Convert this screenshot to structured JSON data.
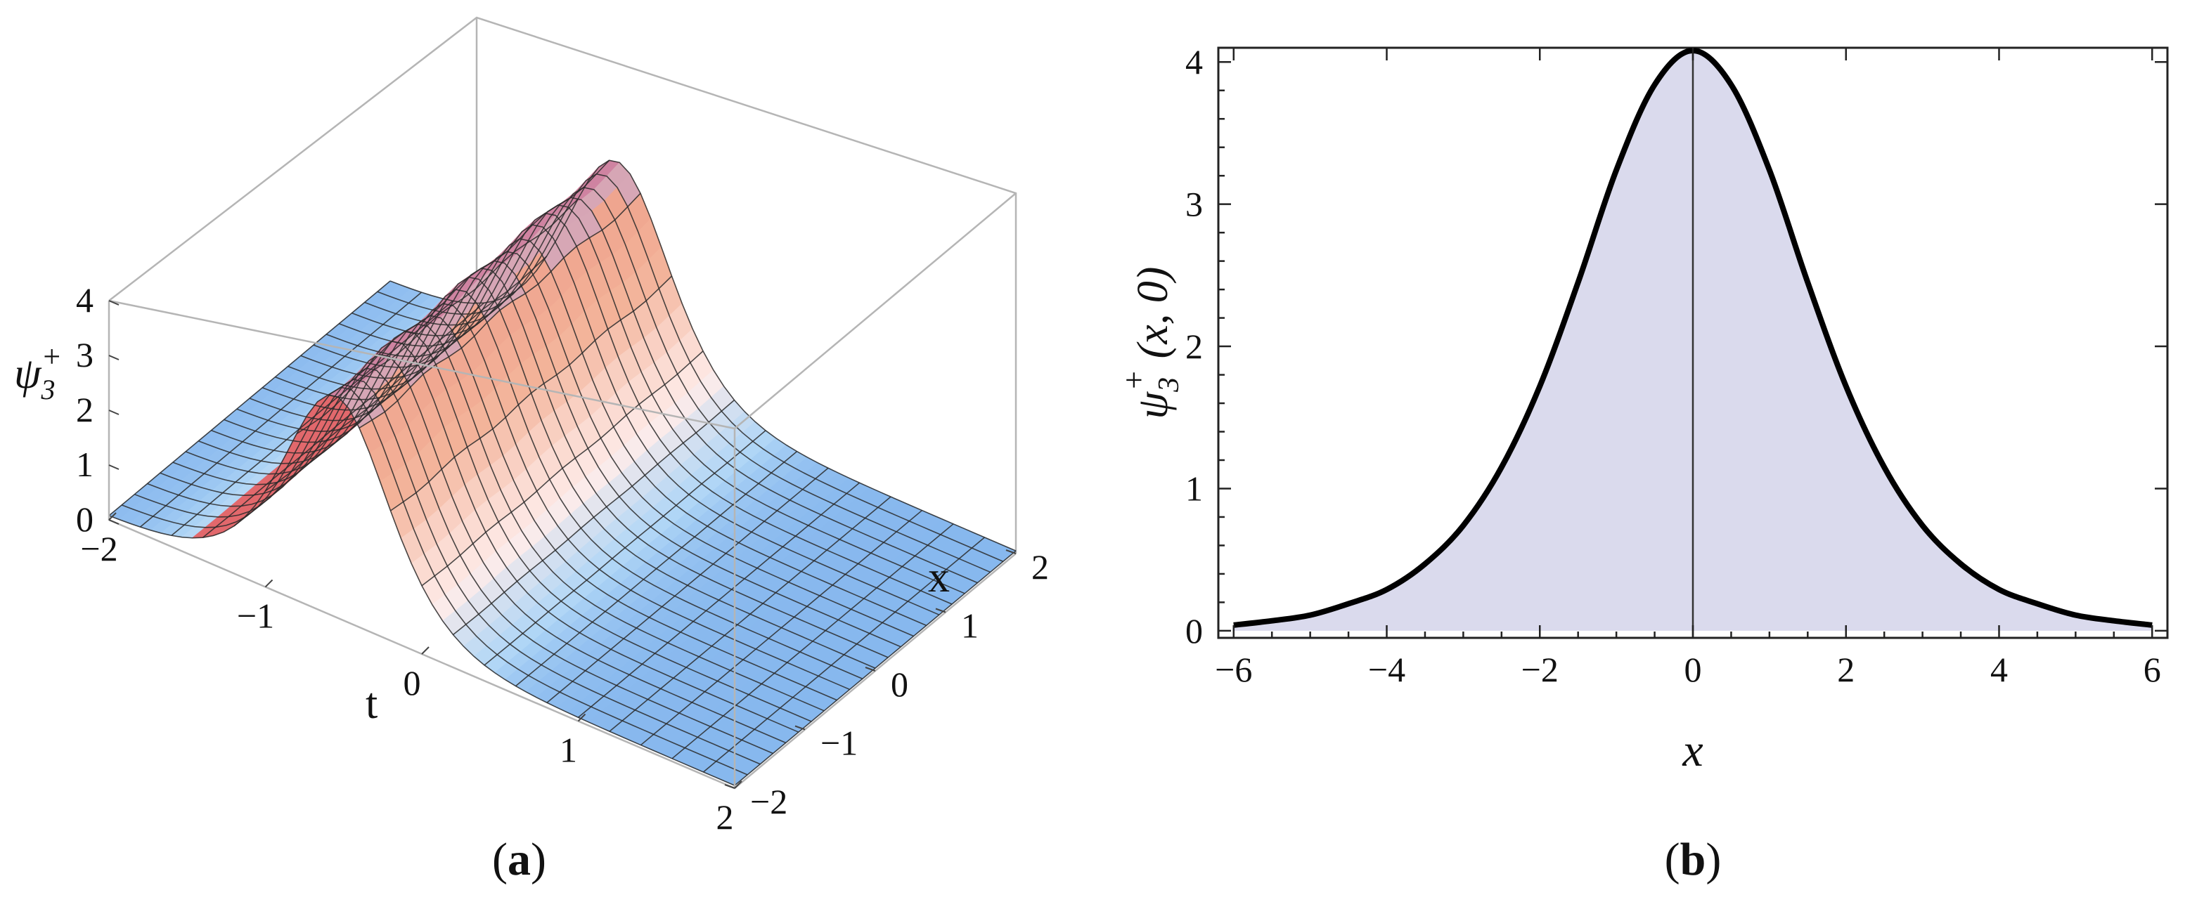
{
  "figure": {
    "panel_labels": {
      "a_open": "(",
      "a": "a",
      "a_close": ")",
      "b_open": "(",
      "b": "b",
      "b_close": ")"
    }
  },
  "chart_data": [
    {
      "type": "surface",
      "panel": "a",
      "zlabel_main": "ψ",
      "zlabel_sub": "3",
      "zlabel_sup": "+",
      "xlabel": "x",
      "tlabel": "t",
      "x_range": [
        -2,
        2
      ],
      "t_range": [
        -2,
        2
      ],
      "z_range": [
        0,
        4
      ],
      "x_ticks": [
        "−2",
        "−1",
        "0",
        "1",
        "2"
      ],
      "t_ticks": [
        "−2",
        "−1",
        "0",
        "1",
        "2"
      ],
      "z_ticks": [
        "0",
        "1",
        "2",
        "3",
        "4"
      ],
      "surface": "soliton ridge along x, centred near t = -0.5, peak ≈ 4, background ≈ 0.05",
      "colors": {
        "low": "#8fbff2",
        "mid": "#fde7e3",
        "high": "#f2a98e",
        "peak": "#b8b6ef"
      }
    },
    {
      "type": "area",
      "panel": "b",
      "ylabel_main": "ψ",
      "ylabel_sub": "3",
      "ylabel_sup": "+",
      "ylabel_args": " (x, 0)",
      "xlabel": "x",
      "xlim": [
        -6.2,
        6.2
      ],
      "ylim": [
        -0.05,
        4.1
      ],
      "x_ticks": [
        "−6",
        "−4",
        "−2",
        "0",
        "2",
        "4",
        "6"
      ],
      "y_ticks": [
        "0",
        "1",
        "2",
        "3",
        "4"
      ],
      "x": [
        -6,
        -5.5,
        -5,
        -4.5,
        -4,
        -3.5,
        -3,
        -2.5,
        -2,
        -1.5,
        -1,
        -0.5,
        0,
        0.5,
        1,
        1.5,
        2,
        2.5,
        3,
        3.5,
        4,
        4.5,
        5,
        5.5,
        6
      ],
      "y": [
        0.04,
        0.07,
        0.11,
        0.19,
        0.29,
        0.47,
        0.74,
        1.15,
        1.72,
        2.45,
        3.24,
        3.84,
        4.08,
        3.84,
        3.24,
        2.45,
        1.72,
        1.15,
        0.74,
        0.47,
        0.29,
        0.19,
        0.11,
        0.07,
        0.04
      ],
      "fill_color": "#dadaed",
      "line_color": "#000000",
      "vertical_line_at_x": 0
    }
  ]
}
